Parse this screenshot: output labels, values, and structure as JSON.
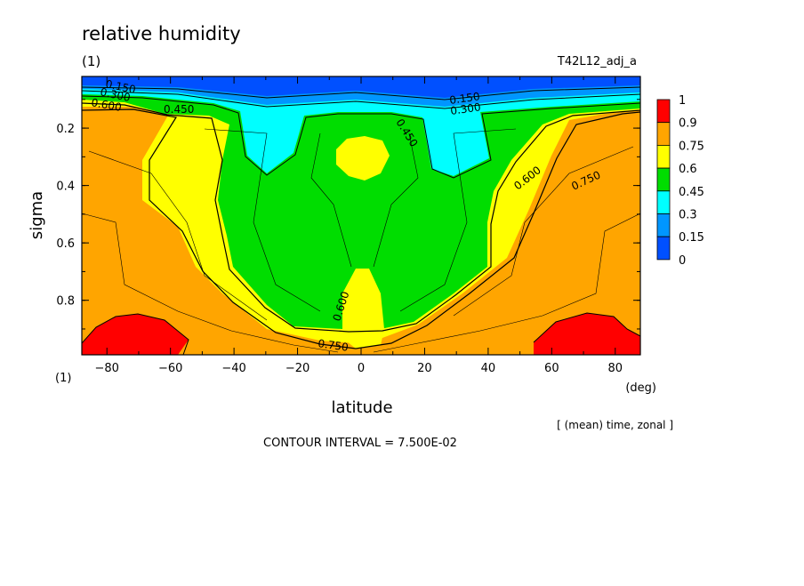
{
  "chart_data": {
    "type": "contour",
    "title": "relative humidity",
    "unit_label": "(1)",
    "run_label": "T42L12_adj_a",
    "xlabel": "latitude",
    "x_unit": "(deg)",
    "ylabel": "sigma",
    "y_unit": "(1)",
    "xlim": [
      -87.9,
      87.9
    ],
    "ylim": [
      0.02,
      0.99
    ],
    "y_inverted": true,
    "x_ticks": [
      "-80",
      "-60",
      "-40",
      "-20",
      "0",
      "20",
      "40",
      "60",
      "80"
    ],
    "y_ticks": [
      "0.2",
      "0.4",
      "0.6",
      "0.8"
    ],
    "averaging_note": "[ (mean) time, zonal ]",
    "contour_interval_text": "CONTOUR INTERVAL = 7.500E-02",
    "colorbar": {
      "labels": [
        "1",
        "0.9",
        "0.75",
        "0.6",
        "0.45",
        "0.3",
        "0.15",
        "0"
      ],
      "bands": [
        {
          "from": 0.9,
          "to": 1.0,
          "color": "#ff0000"
        },
        {
          "from": 0.75,
          "to": 0.9,
          "color": "#ffa500"
        },
        {
          "from": 0.6,
          "to": 0.75,
          "color": "#ffff00"
        },
        {
          "from": 0.45,
          "to": 0.6,
          "color": "#00dd00"
        },
        {
          "from": 0.3,
          "to": 0.45,
          "color": "#00ffff"
        },
        {
          "from": 0.15,
          "to": 0.3,
          "color": "#0096ff"
        },
        {
          "from": 0.0,
          "to": 0.15,
          "color": "#0050ff"
        }
      ]
    },
    "colors": {
      "band_0_015": "#0050ff",
      "band_015_03": "#0096ff",
      "band_03_045": "#00ffff",
      "band_045_06": "#00dd00",
      "band_06_075": "#ffff00",
      "band_075_09": "#ffa500",
      "band_09_1": "#ff0000"
    },
    "contour_labels": [
      "0.150",
      "0.300",
      "0.600",
      "0.450",
      "0.150",
      "0.300",
      "0.450",
      "0.600",
      "0.750",
      "0.600",
      "0.750"
    ],
    "estimated_regions": {
      "low_rh_upper_layer": {
        "sigma_range": [
          0.02,
          0.12
        ],
        "rh": "0 - 0.3"
      },
      "cyan_pockets": [
        {
          "lat_center": -25,
          "sigma": [
            0.1,
            0.32
          ]
        },
        {
          "lat_center": 25,
          "sigma": [
            0.1,
            0.32
          ]
        }
      ],
      "tropical_yellow_upper": {
        "lat": [
          -8,
          8
        ],
        "sigma": [
          0.24,
          0.3
        ],
        "rh": "0.6 - 0.75"
      },
      "tropical_yellow_lower": {
        "lat": [
          -7,
          7
        ],
        "sigma": [
          0.72,
          0.96
        ],
        "rh": "0.6 - 0.75"
      },
      "red_maxima": [
        {
          "lat": [
            -88,
            -55
          ],
          "sigma": [
            0.85,
            0.99
          ]
        },
        {
          "lat": [
            55,
            88
          ],
          "sigma": [
            0.85,
            0.99
          ]
        }
      ]
    }
  }
}
